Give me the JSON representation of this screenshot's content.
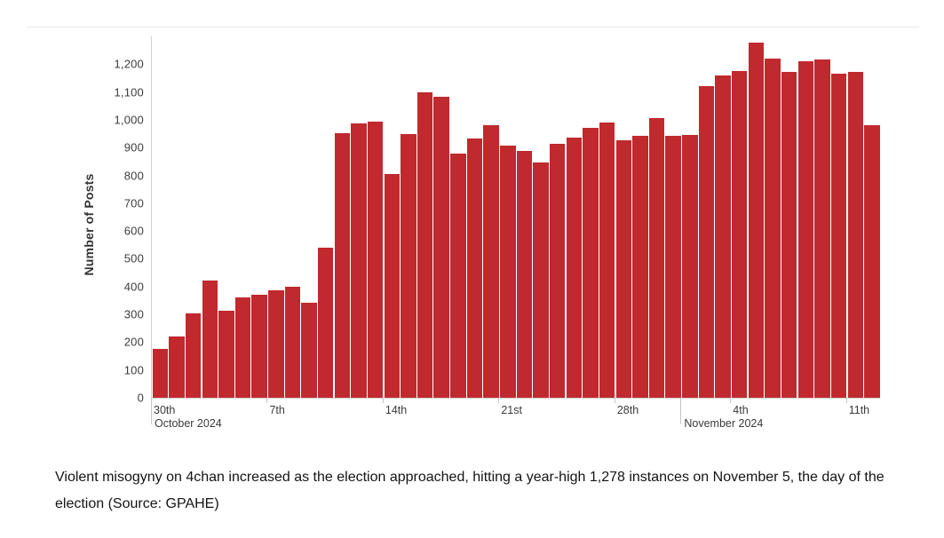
{
  "page": {
    "caption": "Violent misogyny on 4chan increased as the election approached, hitting a year-high 1,278 instances on November 5, the day of the election (Source: GPAHE)"
  },
  "chart_data": {
    "type": "bar",
    "title": "",
    "xlabel": "",
    "ylabel": "Number of Posts",
    "ylim": [
      0,
      1300
    ],
    "grid": false,
    "legend": false,
    "bar_color": "#c0292d",
    "y_ticks": [
      0,
      100,
      200,
      300,
      400,
      500,
      600,
      700,
      800,
      900,
      1000,
      1100,
      1200
    ],
    "x": [
      "Sep 30",
      "Oct 1",
      "Oct 2",
      "Oct 3",
      "Oct 4",
      "Oct 5",
      "Oct 6",
      "Oct 7",
      "Oct 8",
      "Oct 9",
      "Oct 10",
      "Oct 11",
      "Oct 12",
      "Oct 13",
      "Oct 14",
      "Oct 15",
      "Oct 16",
      "Oct 17",
      "Oct 18",
      "Oct 19",
      "Oct 20",
      "Oct 21",
      "Oct 22",
      "Oct 23",
      "Oct 24",
      "Oct 25",
      "Oct 26",
      "Oct 27",
      "Oct 28",
      "Oct 29",
      "Oct 30",
      "Oct 31",
      "Nov 1",
      "Nov 2",
      "Nov 3",
      "Nov 4",
      "Nov 5",
      "Nov 6",
      "Nov 7",
      "Nov 8",
      "Nov 9",
      "Nov 10",
      "Nov 11",
      "Nov 12"
    ],
    "values": [
      175,
      220,
      303,
      421,
      313,
      361,
      370,
      386,
      399,
      342,
      540,
      952,
      986,
      993,
      805,
      948,
      1100,
      1082,
      880,
      932,
      980,
      908,
      888,
      845,
      912,
      935,
      972,
      990,
      925,
      942,
      1005,
      942,
      944,
      1122,
      1158,
      1175,
      1278,
      1220,
      1172,
      1212,
      1216,
      1165,
      1172,
      980
    ],
    "x_axis": {
      "week_ticks": [
        {
          "d": 0,
          "label": "30th"
        },
        {
          "d": 7,
          "label": "7th"
        },
        {
          "d": 14,
          "label": "14th"
        },
        {
          "d": 21,
          "label": "21st"
        },
        {
          "d": 28,
          "label": "28th"
        },
        {
          "d": 35,
          "label": "4th"
        },
        {
          "d": 42,
          "label": "11th"
        }
      ],
      "month_ticks": [
        {
          "d": 0,
          "label": "October 2024"
        },
        {
          "d": 32,
          "label": "November 2024"
        }
      ]
    }
  }
}
